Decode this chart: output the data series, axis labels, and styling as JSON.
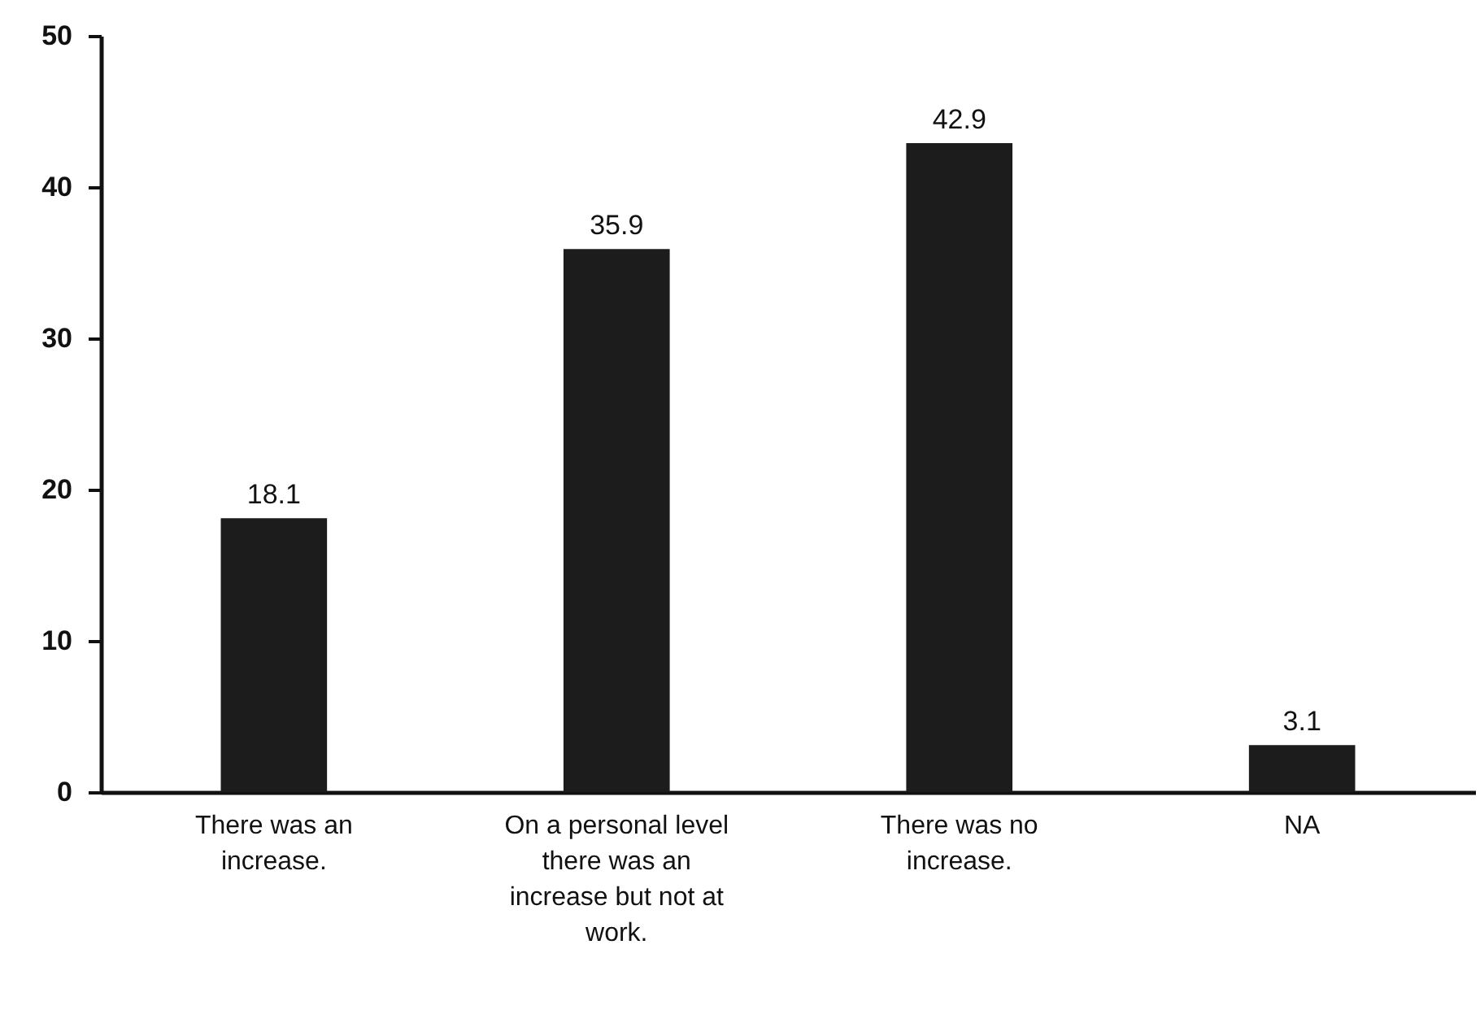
{
  "chart_data": {
    "type": "bar",
    "categories": [
      "There was an increase.",
      "On a personal level there was an increase but not at work.",
      "There was no increase.",
      "NA"
    ],
    "values": [
      18.1,
      35.9,
      42.9,
      3.1
    ],
    "color": "#1c1c1c",
    "ylim": [
      0,
      50
    ],
    "yticks": [
      0,
      10,
      20,
      30,
      40,
      50
    ],
    "grid": false,
    "data_labels": true
  }
}
